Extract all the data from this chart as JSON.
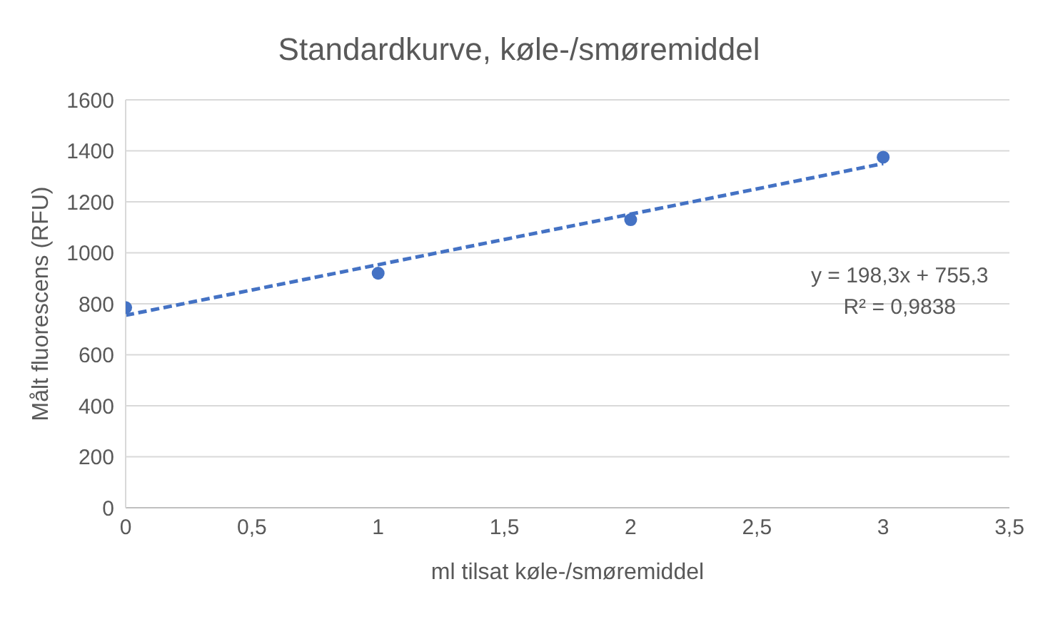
{
  "chart_data": {
    "type": "scatter",
    "title": "Standardkurve, køle-/smøremiddel",
    "xlabel": "ml tilsat køle-/smøremiddel",
    "ylabel": "Målt fluorescens (RFU)",
    "series": [
      {
        "color": "#4472c4",
        "x": [
          0,
          1,
          2,
          3
        ],
        "values": [
          785,
          920,
          1130,
          1375
        ],
        "marker": "circle"
      },
      {
        "type": "line",
        "color": "#4472c4",
        "x": [
          0,
          3
        ],
        "values": [
          755,
          1350
        ],
        "line_style": "dashed",
        "marker": "none"
      }
    ],
    "annotations": [
      "y = 198,3x + 755,3",
      "R² = 0,9838"
    ],
    "xlim": [
      0,
      3.5
    ],
    "xticks": [
      0,
      {
        "value": 0.5,
        "label": "0,5"
      },
      1,
      {
        "value": 1.5,
        "label": "1,5"
      },
      2,
      {
        "value": 2.5,
        "label": "2,5"
      },
      3,
      {
        "value": 3.5,
        "label": "3,5"
      }
    ],
    "ylim": [
      0,
      1600
    ],
    "yticks": [
      0,
      200,
      400,
      600,
      800,
      1000,
      1200,
      1400,
      1600
    ],
    "grid": "y",
    "legend": false
  }
}
